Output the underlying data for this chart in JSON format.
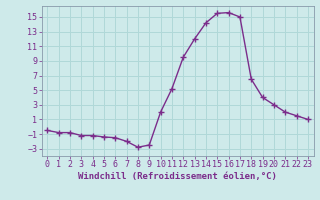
{
  "x": [
    0,
    1,
    2,
    3,
    4,
    5,
    6,
    7,
    8,
    9,
    10,
    11,
    12,
    13,
    14,
    15,
    16,
    17,
    18,
    19,
    20,
    21,
    22,
    23
  ],
  "y": [
    -0.5,
    -0.8,
    -0.8,
    -1.2,
    -1.2,
    -1.4,
    -1.5,
    -2.0,
    -2.8,
    -2.5,
    2.0,
    5.2,
    9.5,
    12.0,
    14.2,
    15.5,
    15.6,
    15.0,
    6.5,
    4.0,
    3.0,
    2.0,
    1.5,
    1.0
  ],
  "line_color": "#7B2D8B",
  "marker": "+",
  "markersize": 4,
  "linewidth": 1.0,
  "bg_color": "#ceeaea",
  "grid_color": "#b0d8d8",
  "xlabel": "Windchill (Refroidissement éolien,°C)",
  "xlim": [
    -0.5,
    23.5
  ],
  "ylim": [
    -4,
    16.5
  ],
  "yticks": [
    -3,
    -1,
    1,
    3,
    5,
    7,
    9,
    11,
    13,
    15
  ],
  "xticks": [
    0,
    1,
    2,
    3,
    4,
    5,
    6,
    7,
    8,
    9,
    10,
    11,
    12,
    13,
    14,
    15,
    16,
    17,
    18,
    19,
    20,
    21,
    22,
    23
  ],
  "tick_color": "#7B2D8B",
  "label_color": "#7B2D8B",
  "xlabel_fontsize": 6.5,
  "tick_fontsize": 6.0,
  "spine_color": "#8899aa"
}
